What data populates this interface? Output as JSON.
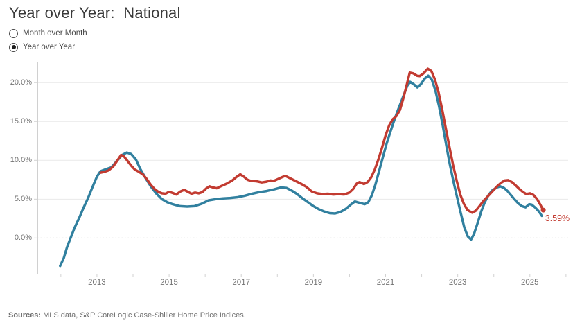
{
  "header": {
    "title": "Year over Year:  National"
  },
  "controls": {
    "type": "radio-group",
    "options": [
      {
        "label": "Month over Month",
        "selected": false
      },
      {
        "label": "Year over Year",
        "selected": true
      }
    ]
  },
  "footer": {
    "sources_label": "Sources:",
    "sources_text": " MLS data, S&P CoreLogic Case-Shiller Home Price Indices."
  },
  "chart_data": {
    "type": "line",
    "title": "Year over Year:  National",
    "xlabel": "",
    "ylabel": "",
    "xlim": [
      2011.35,
      2026.06
    ],
    "ylim": [
      -4.7,
      22.7
    ],
    "grid": true,
    "legend": "none",
    "colors": {
      "grid": "#e9e9e9",
      "zero_line": "#b0b0b0",
      "axis_line": "#d0d0d0",
      "top_border": "#e8e8e8",
      "tick": "#d2d2d2",
      "tick_label": "#737373",
      "red": "#c23b31",
      "blue": "#31809f"
    },
    "y_ticks": [
      {
        "label": "0.0%",
        "value": 0
      },
      {
        "label": "5.0%",
        "value": 5
      },
      {
        "label": "10.0%",
        "value": 10
      },
      {
        "label": "15.0%",
        "value": 15
      },
      {
        "label": "20.0%",
        "value": 20
      }
    ],
    "grid_values": [
      5,
      10,
      15,
      20
    ],
    "zero_line_value": 0,
    "x_ticks": [
      {
        "label": "2013",
        "value": 2013
      },
      {
        "label": "2015",
        "value": 2015
      },
      {
        "label": "2017",
        "value": 2017
      },
      {
        "label": "2019",
        "value": 2019
      },
      {
        "label": "2021",
        "value": 2021
      },
      {
        "label": "2023",
        "value": 2023
      },
      {
        "label": "2025",
        "value": 2025
      }
    ],
    "minor_x_ticks": [
      2012,
      2013,
      2014,
      2015,
      2016,
      2017,
      2018,
      2019,
      2020,
      2021,
      2022,
      2023,
      2024,
      2025,
      2026
    ],
    "annotation": {
      "text": "3.59%",
      "x": 2025.42,
      "y": 2.55,
      "color": "#c23b31"
    },
    "series": [
      {
        "name": "blue-line",
        "color": "#31809f",
        "width": 3.5,
        "end_dot": false,
        "points": [
          [
            2011.98,
            -3.6
          ],
          [
            2012.08,
            -2.6
          ],
          [
            2012.17,
            -1.2
          ],
          [
            2012.27,
            0.0
          ],
          [
            2012.38,
            1.3
          ],
          [
            2012.5,
            2.5
          ],
          [
            2012.62,
            3.8
          ],
          [
            2012.75,
            5.1
          ],
          [
            2012.88,
            6.6
          ],
          [
            2013.0,
            7.9
          ],
          [
            2013.1,
            8.6
          ],
          [
            2013.25,
            8.85
          ],
          [
            2013.4,
            9.1
          ],
          [
            2013.55,
            9.9
          ],
          [
            2013.7,
            10.7
          ],
          [
            2013.83,
            11.0
          ],
          [
            2013.95,
            10.8
          ],
          [
            2014.08,
            10.1
          ],
          [
            2014.2,
            8.9
          ],
          [
            2014.35,
            7.7
          ],
          [
            2014.5,
            6.6
          ],
          [
            2014.65,
            5.7
          ],
          [
            2014.8,
            5.0
          ],
          [
            2014.95,
            4.6
          ],
          [
            2015.1,
            4.35
          ],
          [
            2015.3,
            4.1
          ],
          [
            2015.5,
            4.05
          ],
          [
            2015.7,
            4.1
          ],
          [
            2015.9,
            4.4
          ],
          [
            2016.1,
            4.85
          ],
          [
            2016.3,
            5.0
          ],
          [
            2016.5,
            5.1
          ],
          [
            2016.7,
            5.15
          ],
          [
            2016.9,
            5.25
          ],
          [
            2017.1,
            5.45
          ],
          [
            2017.3,
            5.7
          ],
          [
            2017.5,
            5.9
          ],
          [
            2017.7,
            6.05
          ],
          [
            2017.9,
            6.25
          ],
          [
            2018.1,
            6.5
          ],
          [
            2018.25,
            6.45
          ],
          [
            2018.4,
            6.1
          ],
          [
            2018.55,
            5.65
          ],
          [
            2018.7,
            5.1
          ],
          [
            2018.85,
            4.6
          ],
          [
            2019.0,
            4.1
          ],
          [
            2019.15,
            3.7
          ],
          [
            2019.3,
            3.4
          ],
          [
            2019.45,
            3.2
          ],
          [
            2019.6,
            3.15
          ],
          [
            2019.75,
            3.35
          ],
          [
            2019.9,
            3.75
          ],
          [
            2020.05,
            4.35
          ],
          [
            2020.15,
            4.7
          ],
          [
            2020.3,
            4.5
          ],
          [
            2020.42,
            4.35
          ],
          [
            2020.52,
            4.6
          ],
          [
            2020.62,
            5.5
          ],
          [
            2020.72,
            6.9
          ],
          [
            2020.82,
            8.6
          ],
          [
            2020.92,
            10.3
          ],
          [
            2021.02,
            12.0
          ],
          [
            2021.12,
            13.5
          ],
          [
            2021.22,
            14.9
          ],
          [
            2021.32,
            16.2
          ],
          [
            2021.42,
            17.4
          ],
          [
            2021.52,
            18.6
          ],
          [
            2021.6,
            19.6
          ],
          [
            2021.68,
            20.1
          ],
          [
            2021.78,
            19.8
          ],
          [
            2021.88,
            19.4
          ],
          [
            2021.98,
            19.8
          ],
          [
            2022.08,
            20.5
          ],
          [
            2022.18,
            20.9
          ],
          [
            2022.28,
            20.4
          ],
          [
            2022.38,
            19.0
          ],
          [
            2022.48,
            17.0
          ],
          [
            2022.58,
            14.6
          ],
          [
            2022.68,
            12.0
          ],
          [
            2022.78,
            9.5
          ],
          [
            2022.88,
            7.3
          ],
          [
            2022.98,
            5.3
          ],
          [
            2023.08,
            3.3
          ],
          [
            2023.18,
            1.4
          ],
          [
            2023.28,
            0.2
          ],
          [
            2023.37,
            -0.2
          ],
          [
            2023.45,
            0.5
          ],
          [
            2023.55,
            1.9
          ],
          [
            2023.65,
            3.4
          ],
          [
            2023.75,
            4.6
          ],
          [
            2023.85,
            5.5
          ],
          [
            2023.95,
            6.1
          ],
          [
            2024.08,
            6.5
          ],
          [
            2024.18,
            6.65
          ],
          [
            2024.28,
            6.45
          ],
          [
            2024.38,
            6.05
          ],
          [
            2024.48,
            5.5
          ],
          [
            2024.58,
            4.95
          ],
          [
            2024.68,
            4.45
          ],
          [
            2024.78,
            4.1
          ],
          [
            2024.88,
            3.95
          ],
          [
            2024.98,
            4.35
          ],
          [
            2025.05,
            4.3
          ],
          [
            2025.15,
            3.9
          ],
          [
            2025.25,
            3.4
          ],
          [
            2025.33,
            2.85
          ]
        ]
      },
      {
        "name": "red-line",
        "color": "#c23b31",
        "width": 3.5,
        "end_dot": true,
        "points": [
          [
            2013.1,
            8.4
          ],
          [
            2013.2,
            8.5
          ],
          [
            2013.32,
            8.7
          ],
          [
            2013.45,
            9.2
          ],
          [
            2013.57,
            10.0
          ],
          [
            2013.67,
            10.7
          ],
          [
            2013.75,
            10.5
          ],
          [
            2013.85,
            9.9
          ],
          [
            2013.95,
            9.3
          ],
          [
            2014.05,
            8.8
          ],
          [
            2014.15,
            8.55
          ],
          [
            2014.27,
            8.2
          ],
          [
            2014.38,
            7.6
          ],
          [
            2014.5,
            6.8
          ],
          [
            2014.6,
            6.3
          ],
          [
            2014.7,
            5.95
          ],
          [
            2014.8,
            5.75
          ],
          [
            2014.9,
            5.7
          ],
          [
            2015.0,
            5.95
          ],
          [
            2015.1,
            5.8
          ],
          [
            2015.2,
            5.6
          ],
          [
            2015.32,
            6.0
          ],
          [
            2015.42,
            6.2
          ],
          [
            2015.52,
            5.95
          ],
          [
            2015.62,
            5.7
          ],
          [
            2015.72,
            5.85
          ],
          [
            2015.82,
            5.75
          ],
          [
            2015.92,
            5.9
          ],
          [
            2016.02,
            6.35
          ],
          [
            2016.12,
            6.65
          ],
          [
            2016.22,
            6.5
          ],
          [
            2016.32,
            6.4
          ],
          [
            2016.45,
            6.7
          ],
          [
            2016.6,
            7.0
          ],
          [
            2016.75,
            7.4
          ],
          [
            2016.88,
            7.9
          ],
          [
            2016.97,
            8.2
          ],
          [
            2017.07,
            7.9
          ],
          [
            2017.17,
            7.5
          ],
          [
            2017.27,
            7.35
          ],
          [
            2017.42,
            7.3
          ],
          [
            2017.57,
            7.15
          ],
          [
            2017.7,
            7.25
          ],
          [
            2017.8,
            7.4
          ],
          [
            2017.9,
            7.35
          ],
          [
            2018.0,
            7.55
          ],
          [
            2018.12,
            7.8
          ],
          [
            2018.22,
            8.0
          ],
          [
            2018.35,
            7.7
          ],
          [
            2018.5,
            7.35
          ],
          [
            2018.65,
            7.0
          ],
          [
            2018.8,
            6.6
          ],
          [
            2018.95,
            6.0
          ],
          [
            2019.1,
            5.75
          ],
          [
            2019.25,
            5.65
          ],
          [
            2019.4,
            5.7
          ],
          [
            2019.55,
            5.6
          ],
          [
            2019.7,
            5.65
          ],
          [
            2019.85,
            5.6
          ],
          [
            2020.0,
            5.85
          ],
          [
            2020.1,
            6.3
          ],
          [
            2020.2,
            7.0
          ],
          [
            2020.28,
            7.2
          ],
          [
            2020.4,
            6.95
          ],
          [
            2020.5,
            7.2
          ],
          [
            2020.6,
            7.8
          ],
          [
            2020.7,
            8.8
          ],
          [
            2020.8,
            10.1
          ],
          [
            2020.9,
            11.6
          ],
          [
            2021.0,
            13.2
          ],
          [
            2021.1,
            14.5
          ],
          [
            2021.2,
            15.3
          ],
          [
            2021.3,
            15.7
          ],
          [
            2021.4,
            16.5
          ],
          [
            2021.5,
            18.1
          ],
          [
            2021.6,
            20.0
          ],
          [
            2021.67,
            21.3
          ],
          [
            2021.77,
            21.2
          ],
          [
            2021.87,
            20.9
          ],
          [
            2021.95,
            20.85
          ],
          [
            2022.05,
            21.2
          ],
          [
            2022.17,
            21.8
          ],
          [
            2022.27,
            21.5
          ],
          [
            2022.37,
            20.4
          ],
          [
            2022.47,
            18.7
          ],
          [
            2022.57,
            16.5
          ],
          [
            2022.67,
            14.1
          ],
          [
            2022.77,
            11.7
          ],
          [
            2022.87,
            9.4
          ],
          [
            2022.97,
            7.4
          ],
          [
            2023.07,
            5.6
          ],
          [
            2023.17,
            4.4
          ],
          [
            2023.27,
            3.6
          ],
          [
            2023.4,
            3.25
          ],
          [
            2023.5,
            3.5
          ],
          [
            2023.6,
            4.1
          ],
          [
            2023.7,
            4.7
          ],
          [
            2023.8,
            5.2
          ],
          [
            2023.9,
            5.7
          ],
          [
            2024.0,
            6.2
          ],
          [
            2024.1,
            6.7
          ],
          [
            2024.2,
            7.1
          ],
          [
            2024.3,
            7.4
          ],
          [
            2024.4,
            7.45
          ],
          [
            2024.5,
            7.2
          ],
          [
            2024.6,
            6.8
          ],
          [
            2024.7,
            6.35
          ],
          [
            2024.8,
            5.95
          ],
          [
            2024.9,
            5.65
          ],
          [
            2025.0,
            5.75
          ],
          [
            2025.1,
            5.55
          ],
          [
            2025.2,
            5.0
          ],
          [
            2025.3,
            4.2
          ],
          [
            2025.37,
            3.59
          ]
        ]
      }
    ]
  }
}
